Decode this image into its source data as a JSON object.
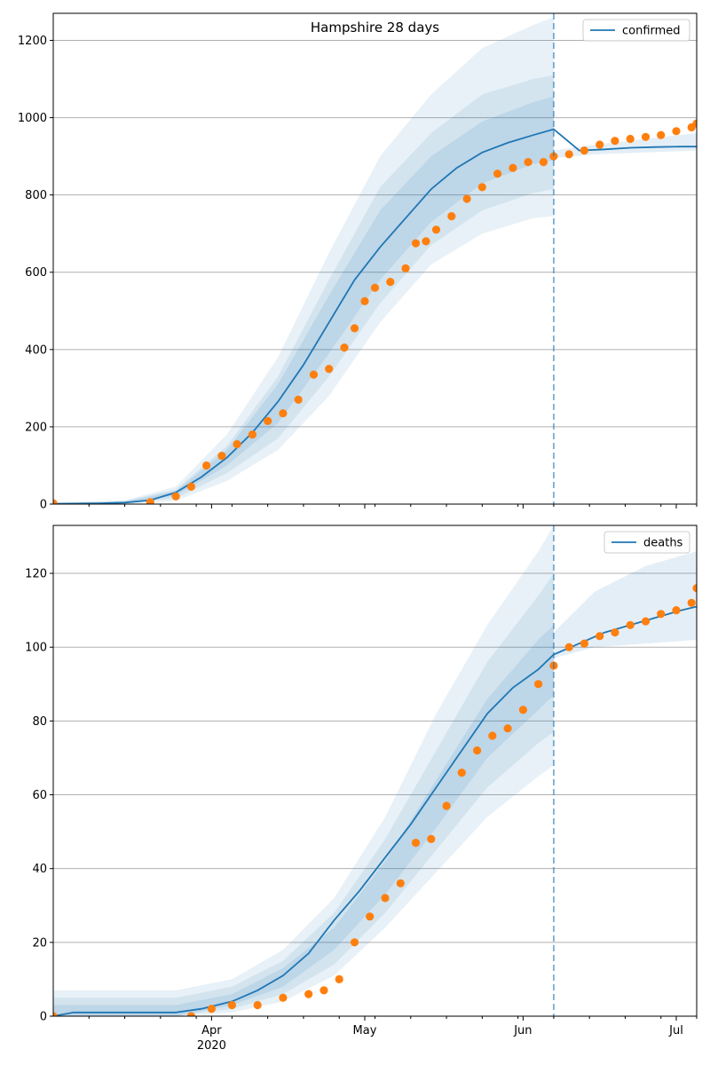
{
  "colors": {
    "model": "#1f77b4",
    "observed": "#ff7f0e",
    "band": "#1f77b4",
    "grid": "#b0b0b0",
    "axis": "#000000",
    "split_line": "#1f77b4"
  },
  "chart_data": [
    {
      "type": "line",
      "title": "Hampshire 28 days",
      "legend": {
        "label": "confirmed",
        "placement": "top-right"
      },
      "grid": "y-major",
      "x_range": [
        "2020-03-01",
        "2020-07-05"
      ],
      "x_ticks": [
        {
          "date": "2020-04-01",
          "label": "Apr"
        },
        {
          "date": "2020-05-01",
          "label": "May"
        },
        {
          "date": "2020-06-01",
          "label": "Jun"
        },
        {
          "date": "2020-07-01",
          "label": "Jul"
        }
      ],
      "x_minor_ticks": [
        "2020-03-08",
        "2020-03-15",
        "2020-03-22",
        "2020-03-29",
        "2020-04-05",
        "2020-04-12",
        "2020-04-19",
        "2020-04-26",
        "2020-05-03",
        "2020-05-10",
        "2020-05-17",
        "2020-05-24",
        "2020-05-31",
        "2020-06-07",
        "2020-06-14",
        "2020-06-21",
        "2020-06-28",
        "2020-07-05"
      ],
      "year_label": "",
      "ylim": [
        0,
        1270
      ],
      "y_ticks": [
        0,
        200,
        400,
        600,
        800,
        1000,
        1200
      ],
      "split_date": "2020-06-07",
      "model_line": {
        "x": [
          "2020-03-01",
          "2020-03-10",
          "2020-03-15",
          "2020-03-20",
          "2020-03-25",
          "2020-03-30",
          "2020-04-04",
          "2020-04-09",
          "2020-04-14",
          "2020-04-19",
          "2020-04-24",
          "2020-04-29",
          "2020-05-04",
          "2020-05-09",
          "2020-05-14",
          "2020-05-19",
          "2020-05-24",
          "2020-05-29",
          "2020-06-03",
          "2020-06-07",
          "2020-06-12",
          "2020-06-17",
          "2020-06-22",
          "2020-06-27",
          "2020-07-02",
          "2020-07-05"
        ],
        "y": [
          1,
          2,
          4,
          10,
          30,
          70,
          120,
          185,
          265,
          360,
          470,
          580,
          665,
          740,
          815,
          870,
          910,
          935,
          955,
          970,
          915,
          918,
          922,
          924,
          925,
          925
        ]
      },
      "observed": {
        "x": [
          "2020-03-01",
          "2020-03-20",
          "2020-03-25",
          "2020-03-28",
          "2020-03-31",
          "2020-04-03",
          "2020-04-06",
          "2020-04-09",
          "2020-04-12",
          "2020-04-15",
          "2020-04-18",
          "2020-04-21",
          "2020-04-24",
          "2020-04-27",
          "2020-04-29",
          "2020-05-01",
          "2020-05-03",
          "2020-05-06",
          "2020-05-09",
          "2020-05-11",
          "2020-05-13",
          "2020-05-15",
          "2020-05-18",
          "2020-05-21",
          "2020-05-24",
          "2020-05-27",
          "2020-05-30",
          "2020-06-02",
          "2020-06-05",
          "2020-06-07",
          "2020-06-10",
          "2020-06-13",
          "2020-06-16",
          "2020-06-19",
          "2020-06-22",
          "2020-06-25",
          "2020-06-28",
          "2020-07-01",
          "2020-07-04",
          "2020-07-05"
        ],
        "y": [
          2,
          5,
          20,
          45,
          100,
          125,
          155,
          180,
          215,
          235,
          270,
          335,
          350,
          405,
          455,
          525,
          560,
          575,
          610,
          675,
          680,
          710,
          745,
          790,
          820,
          855,
          870,
          885,
          885,
          900,
          905,
          915,
          930,
          940,
          945,
          950,
          955,
          965,
          975,
          985
        ]
      },
      "bands": [
        {
          "level": "outer",
          "x": [
            "2020-03-01",
            "2020-03-15",
            "2020-03-25",
            "2020-04-04",
            "2020-04-14",
            "2020-04-24",
            "2020-05-04",
            "2020-05-14",
            "2020-05-24",
            "2020-06-03",
            "2020-06-07"
          ],
          "lower": [
            0,
            1,
            8,
            60,
            140,
            280,
            470,
            620,
            700,
            740,
            745
          ],
          "upper": [
            4,
            10,
            45,
            180,
            380,
            650,
            900,
            1060,
            1180,
            1240,
            1260
          ]
        },
        {
          "level": "middle",
          "x": [
            "2020-03-01",
            "2020-03-15",
            "2020-03-25",
            "2020-04-04",
            "2020-04-14",
            "2020-04-24",
            "2020-05-04",
            "2020-05-14",
            "2020-05-24",
            "2020-06-03",
            "2020-06-07"
          ],
          "lower": [
            0,
            2,
            15,
            80,
            170,
            330,
            520,
            670,
            760,
            805,
            815
          ],
          "upper": [
            3,
            8,
            38,
            150,
            330,
            580,
            820,
            960,
            1060,
            1100,
            1110
          ]
        },
        {
          "level": "inner",
          "x": [
            "2020-03-01",
            "2020-03-15",
            "2020-03-25",
            "2020-04-04",
            "2020-04-14",
            "2020-04-24",
            "2020-05-04",
            "2020-05-14",
            "2020-05-24",
            "2020-06-03",
            "2020-06-07"
          ],
          "lower": [
            0,
            3,
            22,
            100,
            210,
            390,
            580,
            730,
            830,
            880,
            890
          ],
          "upper": [
            2,
            6,
            34,
            140,
            310,
            540,
            760,
            900,
            990,
            1040,
            1055
          ]
        },
        {
          "level": "forecast",
          "x": [
            "2020-06-07",
            "2020-06-15",
            "2020-06-25",
            "2020-07-05"
          ],
          "lower": [
            895,
            905,
            910,
            915
          ],
          "upper": [
            915,
            930,
            945,
            960
          ]
        }
      ]
    },
    {
      "type": "line",
      "title": "",
      "legend": {
        "label": "deaths",
        "placement": "top-right"
      },
      "grid": "y-major",
      "x_range": [
        "2020-03-01",
        "2020-07-05"
      ],
      "x_ticks": [
        {
          "date": "2020-04-01",
          "label": "Apr"
        },
        {
          "date": "2020-05-01",
          "label": "May"
        },
        {
          "date": "2020-06-01",
          "label": "Jun"
        },
        {
          "date": "2020-07-01",
          "label": "Jul"
        }
      ],
      "x_minor_ticks": [
        "2020-03-08",
        "2020-03-15",
        "2020-03-22",
        "2020-03-29",
        "2020-04-05",
        "2020-04-12",
        "2020-04-19",
        "2020-04-26",
        "2020-05-03",
        "2020-05-10",
        "2020-05-17",
        "2020-05-24",
        "2020-05-31",
        "2020-06-07",
        "2020-06-14",
        "2020-06-21",
        "2020-06-28",
        "2020-07-05"
      ],
      "year_label": "2020",
      "ylim": [
        0,
        133
      ],
      "y_ticks": [
        0,
        20,
        40,
        60,
        80,
        100,
        120
      ],
      "split_date": "2020-06-07",
      "model_line": {
        "x": [
          "2020-03-01",
          "2020-03-05",
          "2020-03-25",
          "2020-03-30",
          "2020-04-05",
          "2020-04-10",
          "2020-04-15",
          "2020-04-20",
          "2020-04-25",
          "2020-04-30",
          "2020-05-05",
          "2020-05-10",
          "2020-05-15",
          "2020-05-20",
          "2020-05-25",
          "2020-05-30",
          "2020-06-04",
          "2020-06-07",
          "2020-06-12",
          "2020-06-17",
          "2020-06-22",
          "2020-06-27",
          "2020-07-02",
          "2020-07-05"
        ],
        "y": [
          0,
          1,
          1,
          2,
          4,
          7,
          11,
          17,
          26,
          34,
          43,
          52,
          62,
          72,
          82,
          89,
          94,
          98,
          101,
          104,
          106,
          108,
          110,
          111
        ]
      },
      "observed": {
        "x": [
          "2020-03-01",
          "2020-03-28",
          "2020-04-01",
          "2020-04-05",
          "2020-04-10",
          "2020-04-15",
          "2020-04-20",
          "2020-04-23",
          "2020-04-26",
          "2020-04-29",
          "2020-05-02",
          "2020-05-05",
          "2020-05-08",
          "2020-05-11",
          "2020-05-14",
          "2020-05-17",
          "2020-05-20",
          "2020-05-23",
          "2020-05-26",
          "2020-05-29",
          "2020-06-01",
          "2020-06-04",
          "2020-06-07",
          "2020-06-10",
          "2020-06-13",
          "2020-06-16",
          "2020-06-19",
          "2020-06-22",
          "2020-06-25",
          "2020-06-28",
          "2020-07-01",
          "2020-07-04",
          "2020-07-05"
        ],
        "y": [
          0,
          0,
          2,
          3,
          3,
          5,
          6,
          7,
          10,
          20,
          27,
          32,
          36,
          47,
          48,
          57,
          66,
          72,
          76,
          78,
          83,
          90,
          95,
          100,
          101,
          103,
          104,
          106,
          107,
          109,
          110,
          112,
          116
        ]
      },
      "bands": [
        {
          "level": "outer",
          "x": [
            "2020-03-01",
            "2020-03-25",
            "2020-04-05",
            "2020-04-15",
            "2020-04-25",
            "2020-05-05",
            "2020-05-15",
            "2020-05-25",
            "2020-06-04",
            "2020-06-07"
          ],
          "lower": [
            0,
            0,
            1,
            4,
            11,
            24,
            39,
            54,
            65,
            68
          ],
          "upper": [
            7,
            7,
            10,
            18,
            32,
            54,
            82,
            106,
            126,
            133
          ]
        },
        {
          "level": "middle",
          "x": [
            "2020-03-01",
            "2020-03-25",
            "2020-04-05",
            "2020-04-15",
            "2020-04-25",
            "2020-05-05",
            "2020-05-15",
            "2020-05-25",
            "2020-06-04",
            "2020-06-07"
          ],
          "lower": [
            0,
            0,
            2,
            6,
            14,
            28,
            45,
            62,
            74,
            77
          ],
          "upper": [
            5,
            5,
            8,
            15,
            28,
            48,
            72,
            96,
            114,
            120
          ]
        },
        {
          "level": "inner",
          "x": [
            "2020-03-01",
            "2020-03-25",
            "2020-04-05",
            "2020-04-15",
            "2020-04-25",
            "2020-05-05",
            "2020-05-15",
            "2020-05-25",
            "2020-06-04",
            "2020-06-07"
          ],
          "lower": [
            0,
            0,
            3,
            8,
            18,
            33,
            51,
            70,
            83,
            87
          ],
          "upper": [
            3,
            3,
            6,
            13,
            24,
            42,
            64,
            86,
            102,
            106
          ]
        },
        {
          "level": "forecast",
          "x": [
            "2020-06-07",
            "2020-06-15",
            "2020-06-25",
            "2020-07-05"
          ],
          "lower": [
            97,
            100,
            101,
            102
          ],
          "upper": [
            104,
            115,
            122,
            126
          ]
        }
      ]
    }
  ]
}
